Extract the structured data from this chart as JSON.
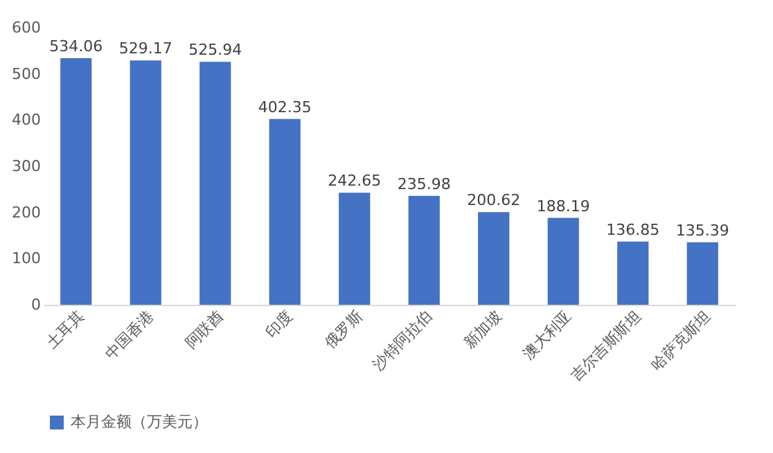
{
  "chart_data": {
    "type": "bar",
    "categories": [
      "土耳其",
      "中国香港",
      "阿联酋",
      "印度",
      "俄罗斯",
      "沙特阿拉伯",
      "新加坡",
      "澳大利亚",
      "吉尔吉斯斯坦",
      "哈萨克斯坦"
    ],
    "series": [
      {
        "name": "本月金额（万美元）",
        "color": "#4472c4",
        "values": [
          534.06,
          529.17,
          525.94,
          402.35,
          242.65,
          235.98,
          200.62,
          188.19,
          136.85,
          135.39
        ]
      }
    ],
    "ylim": [
      0,
      600
    ],
    "yticks": [
      0,
      100,
      200,
      300,
      400,
      500,
      600
    ],
    "grid": false,
    "legend": "bottom",
    "data_labels": true
  }
}
